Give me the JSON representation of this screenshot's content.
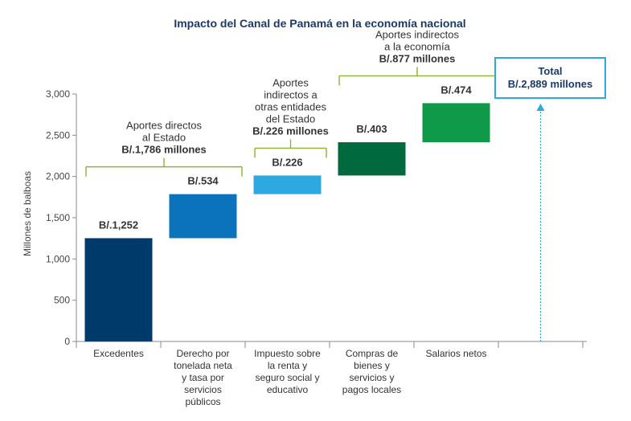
{
  "chart_data": {
    "type": "bar",
    "title": "Impacto del Canal de Panamá en la economía nacional",
    "ylabel": "Millones de balboas",
    "ylim": [
      0,
      3000
    ],
    "yticks": [
      0,
      500,
      1000,
      1500,
      2000,
      2500,
      3000
    ],
    "ytick_labels": [
      "0",
      "500",
      "1,000",
      "1,500",
      "2,000",
      "2,500",
      "3,000"
    ],
    "categories": [
      [
        "Excedentes"
      ],
      [
        "Derecho por",
        "tonelada neta",
        "y tasa por",
        "servicios",
        "públicos"
      ],
      [
        "Impuesto sobre",
        "la renta y",
        "seguro social y",
        "educativo"
      ],
      [
        "Compras de",
        "bienes y",
        "servicios y",
        "pagos locales"
      ],
      [
        "Salarios netos"
      ]
    ],
    "values": [
      1252,
      534,
      226,
      403,
      474
    ],
    "bases": [
      0,
      1252,
      1786,
      2012,
      2415
    ],
    "bar_labels": [
      "B/.1,252",
      "B/.534",
      "B/.226",
      "B/.403",
      "B/.474"
    ],
    "colors": [
      "#003a6b",
      "#0b73bb",
      "#2ea8e0",
      "#00693e",
      "#0e9a48"
    ],
    "groups": [
      {
        "from": 0,
        "to": 1,
        "lines": [
          "Aportes directos",
          "al Estado"
        ],
        "bold": "B/.1,786 millones"
      },
      {
        "from": 2,
        "to": 2,
        "lines": [
          "Aportes",
          "indirectos a",
          "otras entidades",
          "del Estado"
        ],
        "bold": "B/.226 millones"
      },
      {
        "from": 3,
        "to": 4,
        "lines": [
          "Aportes indirectos",
          "a la economía"
        ],
        "bold": "B/.877 millones"
      }
    ],
    "total": {
      "label": "Total",
      "value_label": "B/.2,889 millones",
      "value": 2889
    },
    "colors_accent": {
      "bracket": "#8bb431",
      "total_box": "#2ea8e0",
      "total_arrow": "#2ea8e0",
      "axis": "#888888"
    }
  }
}
